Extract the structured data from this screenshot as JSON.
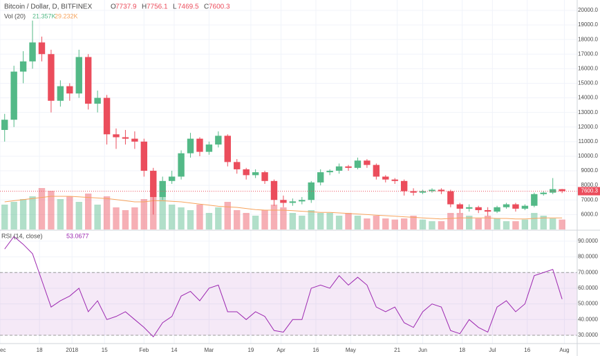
{
  "chart_data": [
    {
      "type": "candlestick",
      "title": "Bitcoin / Dollar, D, BITFINEX",
      "ohlc_legend": [
        {
          "name": "O",
          "value": 7737.9
        },
        {
          "name": "H",
          "value": 7756.1
        },
        {
          "name": "L",
          "value": 7469.5
        },
        {
          "name": "C",
          "value": 7600.3
        }
      ],
      "up_color": "#53b987",
      "down_color": "#eb4d5c",
      "x": [
        2,
        6,
        10,
        14,
        18,
        22,
        26,
        30,
        34,
        38,
        42,
        46,
        50,
        54,
        58,
        62,
        66,
        70,
        74,
        78,
        82,
        86,
        90,
        94,
        98,
        102,
        106,
        110,
        114,
        118,
        122,
        126,
        130,
        134,
        138,
        142,
        146,
        150,
        154,
        158,
        162,
        166,
        170,
        174,
        178,
        182,
        186,
        190,
        194,
        198,
        202,
        206,
        210,
        214,
        218,
        222,
        226,
        230,
        234,
        238,
        242
      ],
      "open": [
        11800,
        12500,
        15800,
        16500,
        17800,
        17000,
        13800,
        14800,
        14300,
        16800,
        13600,
        14000,
        11500,
        11300,
        11200,
        11000,
        9000,
        7200,
        8300,
        8600,
        10200,
        11200,
        10300,
        10800,
        11400,
        9600,
        9100,
        8700,
        8900,
        8300,
        7000,
        6800,
        6900,
        7000,
        8200,
        8900,
        9000,
        9300,
        9200,
        9700,
        9400,
        8600,
        8400,
        8300,
        7600,
        7500,
        7600,
        7700,
        7600,
        6700,
        6400,
        6500,
        6300,
        6200,
        6500,
        6700,
        6400,
        6600,
        7400,
        7500,
        7737.9
      ],
      "high": [
        12900,
        16200,
        17200,
        19300,
        18200,
        17300,
        15200,
        15000,
        17300,
        17000,
        14500,
        14200,
        11900,
        11800,
        11700,
        11200,
        9200,
        8600,
        9000,
        10400,
        11600,
        11300,
        11000,
        11700,
        11500,
        9800,
        9200,
        9100,
        9000,
        8400,
        7300,
        7100,
        7200,
        8300,
        9100,
        9100,
        9500,
        9400,
        9900,
        9800,
        9500,
        8700,
        8500,
        8400,
        7800,
        7700,
        7800,
        7800,
        7700,
        6800,
        6700,
        6600,
        6500,
        6600,
        6800,
        6800,
        6700,
        7500,
        7600,
        8500,
        7756.1
      ],
      "low": [
        11000,
        12000,
        15000,
        16000,
        16500,
        13000,
        13400,
        13800,
        14000,
        13200,
        13000,
        10800,
        10500,
        10800,
        10500,
        8600,
        6000,
        7000,
        8100,
        8400,
        9900,
        10000,
        10100,
        10600,
        9300,
        8800,
        8400,
        8500,
        8100,
        6600,
        6500,
        6600,
        6700,
        6800,
        8000,
        8700,
        8800,
        9000,
        9100,
        9200,
        8400,
        8200,
        8100,
        7300,
        7300,
        7400,
        7500,
        7400,
        6500,
        6100,
        6200,
        6100,
        5900,
        6100,
        6400,
        6200,
        6300,
        6500,
        7300,
        7400,
        7469.5
      ],
      "close": [
        12500,
        15800,
        16500,
        17800,
        17000,
        13800,
        14800,
        14300,
        16800,
        13600,
        14000,
        11500,
        11300,
        11200,
        11000,
        9000,
        7200,
        8300,
        8600,
        10200,
        11200,
        10300,
        10800,
        11400,
        9600,
        9100,
        8700,
        8900,
        8300,
        7000,
        6800,
        6900,
        7000,
        8200,
        8900,
        9000,
        9300,
        9200,
        9700,
        9400,
        8600,
        8400,
        8300,
        7600,
        7500,
        7600,
        7700,
        7600,
        6700,
        6400,
        6500,
        6300,
        6200,
        6500,
        6700,
        6400,
        6600,
        7400,
        7500,
        7740,
        7600.3
      ],
      "last_price": 7600.3,
      "xlim": [
        0,
        248.5
      ],
      "ylim": [
        4973,
        20710
      ],
      "yticks": [
        {
          "value": 6000,
          "label": "6000.0"
        },
        {
          "value": 7000,
          "label": "7000.0"
        },
        {
          "value": 8000,
          "label": "8000.0"
        },
        {
          "value": 9000,
          "label": "9000.0"
        },
        {
          "value": 10000,
          "label": "10000.0"
        },
        {
          "value": 11000,
          "label": "11000.0"
        },
        {
          "value": 12000,
          "label": "12000.0"
        },
        {
          "value": 13000,
          "label": "13000.0"
        },
        {
          "value": 14000,
          "label": "14000.0"
        },
        {
          "value": 15000,
          "label": "15000.0"
        },
        {
          "value": 16000,
          "label": "16000.0"
        },
        {
          "value": 17000,
          "label": "17000.0"
        },
        {
          "value": 18000,
          "label": "18000.0"
        },
        {
          "value": 19000,
          "label": "19000.0"
        },
        {
          "value": 20000,
          "label": "20000.0"
        }
      ],
      "volume": {
        "name": "Vol (20)",
        "legend_values": [
          "21.357K",
          "29.232K"
        ],
        "ma_color": "#f7a35c",
        "ylim": [
          0,
          150
        ],
        "values": [
          45,
          50,
          55,
          60,
          75,
          70,
          55,
          60,
          50,
          65,
          45,
          60,
          40,
          35,
          40,
          55,
          80,
          60,
          45,
          40,
          35,
          45,
          30,
          40,
          50,
          35,
          30,
          25,
          35,
          45,
          40,
          30,
          25,
          35,
          30,
          30,
          25,
          30,
          25,
          20,
          25,
          20,
          18,
          20,
          25,
          18,
          15,
          15,
          30,
          30,
          25,
          20,
          25,
          20,
          15,
          15,
          18,
          30,
          25,
          20,
          18
        ],
        "ma_values": [
          50,
          52,
          54,
          56,
          58,
          60,
          60,
          60,
          59,
          58,
          57,
          56,
          54,
          52,
          50,
          50,
          52,
          52,
          51,
          50,
          48,
          46,
          44,
          42,
          41,
          40,
          38,
          36,
          35,
          35,
          35,
          34,
          33,
          32,
          31,
          31,
          30,
          29,
          28,
          27,
          26,
          25,
          24,
          23,
          22,
          21,
          20,
          19,
          20,
          21,
          21,
          21,
          21,
          20,
          20,
          19,
          19,
          20,
          21,
          21,
          21
        ]
      }
    },
    {
      "type": "line",
      "series": [
        {
          "name": "RSI (14, close)",
          "color": "#9c27b0",
          "x": [
            2,
            6,
            10,
            14,
            18,
            22,
            26,
            30,
            34,
            38,
            42,
            46,
            50,
            54,
            58,
            62,
            66,
            70,
            74,
            78,
            82,
            86,
            90,
            94,
            98,
            102,
            106,
            110,
            114,
            118,
            122,
            126,
            130,
            134,
            138,
            142,
            146,
            150,
            154,
            158,
            162,
            166,
            170,
            174,
            178,
            182,
            186,
            190,
            194,
            198,
            202,
            206,
            210,
            214,
            218,
            222,
            226,
            230,
            234,
            238,
            242
          ],
          "values": [
            85,
            93,
            88,
            82,
            65,
            48,
            52,
            55,
            60,
            45,
            52,
            40,
            42,
            45,
            40,
            35,
            29,
            38,
            42,
            55,
            58,
            52,
            60,
            62,
            45,
            45,
            40,
            45,
            42,
            33,
            32,
            40,
            40,
            60,
            62,
            60,
            68,
            62,
            67,
            62,
            48,
            45,
            48,
            38,
            35,
            45,
            50,
            48,
            33,
            31,
            40,
            35,
            32,
            48,
            52,
            45,
            50,
            68,
            70,
            72,
            53.0677
          ]
        }
      ],
      "last_value": 53.0677,
      "band": [
        30,
        70
      ],
      "band_color": "#9c27b0",
      "xlim": [
        0,
        248.5
      ],
      "ylim": [
        24.7,
        95.7
      ],
      "yticks": [
        {
          "value": 30,
          "label": "30.0000"
        },
        {
          "value": 40,
          "label": "40.0000"
        },
        {
          "value": 50,
          "label": "50.0000"
        },
        {
          "value": 60,
          "label": "60.0000"
        },
        {
          "value": 70,
          "label": "70.0000"
        },
        {
          "value": 80,
          "label": "80.0000"
        },
        {
          "value": 90,
          "label": "90.0000"
        }
      ],
      "xticks": [
        {
          "value": 0,
          "label": "ec"
        },
        {
          "value": 17,
          "label": "18"
        },
        {
          "value": 31,
          "label": "2018"
        },
        {
          "value": 45,
          "label": "15"
        },
        {
          "value": 62,
          "label": "Feb"
        },
        {
          "value": 75,
          "label": "14"
        },
        {
          "value": 90,
          "label": "Mar"
        },
        {
          "value": 108,
          "label": "19"
        },
        {
          "value": 121,
          "label": "Apr"
        },
        {
          "value": 136,
          "label": "16"
        },
        {
          "value": 151,
          "label": "May"
        },
        {
          "value": 171,
          "label": "21"
        },
        {
          "value": 182,
          "label": "Jun"
        },
        {
          "value": 199,
          "label": "18"
        },
        {
          "value": 212,
          "label": "Jul"
        },
        {
          "value": 227,
          "label": "16"
        },
        {
          "value": 243,
          "label": "Aug"
        }
      ]
    }
  ]
}
